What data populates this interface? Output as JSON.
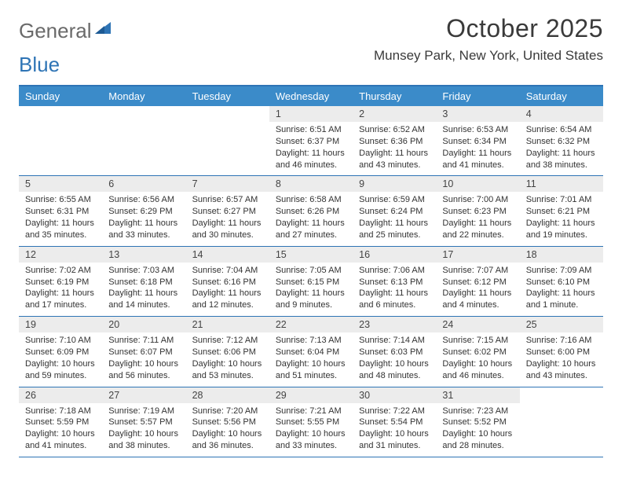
{
  "logo": {
    "text1": "General",
    "text2": "Blue"
  },
  "title": "October 2025",
  "location": "Munsey Park, New York, United States",
  "colors": {
    "header_bg": "#3b8bc9",
    "header_text": "#ffffff",
    "border": "#2e74b5",
    "daynum_bg": "#ececec",
    "body_text": "#333333",
    "logo_gray": "#6a6a6a",
    "logo_blue": "#2e74b5"
  },
  "typography": {
    "title_fontsize": 32,
    "location_fontsize": 17,
    "dayheader_fontsize": 13,
    "daynum_fontsize": 12.5,
    "info_fontsize": 11
  },
  "day_names": [
    "Sunday",
    "Monday",
    "Tuesday",
    "Wednesday",
    "Thursday",
    "Friday",
    "Saturday"
  ],
  "weeks": [
    [
      {
        "n": "",
        "sunrise": "",
        "sunset": "",
        "daylight1": "",
        "daylight2": ""
      },
      {
        "n": "",
        "sunrise": "",
        "sunset": "",
        "daylight1": "",
        "daylight2": ""
      },
      {
        "n": "",
        "sunrise": "",
        "sunset": "",
        "daylight1": "",
        "daylight2": ""
      },
      {
        "n": "1",
        "sunrise": "Sunrise: 6:51 AM",
        "sunset": "Sunset: 6:37 PM",
        "daylight1": "Daylight: 11 hours",
        "daylight2": "and 46 minutes."
      },
      {
        "n": "2",
        "sunrise": "Sunrise: 6:52 AM",
        "sunset": "Sunset: 6:36 PM",
        "daylight1": "Daylight: 11 hours",
        "daylight2": "and 43 minutes."
      },
      {
        "n": "3",
        "sunrise": "Sunrise: 6:53 AM",
        "sunset": "Sunset: 6:34 PM",
        "daylight1": "Daylight: 11 hours",
        "daylight2": "and 41 minutes."
      },
      {
        "n": "4",
        "sunrise": "Sunrise: 6:54 AM",
        "sunset": "Sunset: 6:32 PM",
        "daylight1": "Daylight: 11 hours",
        "daylight2": "and 38 minutes."
      }
    ],
    [
      {
        "n": "5",
        "sunrise": "Sunrise: 6:55 AM",
        "sunset": "Sunset: 6:31 PM",
        "daylight1": "Daylight: 11 hours",
        "daylight2": "and 35 minutes."
      },
      {
        "n": "6",
        "sunrise": "Sunrise: 6:56 AM",
        "sunset": "Sunset: 6:29 PM",
        "daylight1": "Daylight: 11 hours",
        "daylight2": "and 33 minutes."
      },
      {
        "n": "7",
        "sunrise": "Sunrise: 6:57 AM",
        "sunset": "Sunset: 6:27 PM",
        "daylight1": "Daylight: 11 hours",
        "daylight2": "and 30 minutes."
      },
      {
        "n": "8",
        "sunrise": "Sunrise: 6:58 AM",
        "sunset": "Sunset: 6:26 PM",
        "daylight1": "Daylight: 11 hours",
        "daylight2": "and 27 minutes."
      },
      {
        "n": "9",
        "sunrise": "Sunrise: 6:59 AM",
        "sunset": "Sunset: 6:24 PM",
        "daylight1": "Daylight: 11 hours",
        "daylight2": "and 25 minutes."
      },
      {
        "n": "10",
        "sunrise": "Sunrise: 7:00 AM",
        "sunset": "Sunset: 6:23 PM",
        "daylight1": "Daylight: 11 hours",
        "daylight2": "and 22 minutes."
      },
      {
        "n": "11",
        "sunrise": "Sunrise: 7:01 AM",
        "sunset": "Sunset: 6:21 PM",
        "daylight1": "Daylight: 11 hours",
        "daylight2": "and 19 minutes."
      }
    ],
    [
      {
        "n": "12",
        "sunrise": "Sunrise: 7:02 AM",
        "sunset": "Sunset: 6:19 PM",
        "daylight1": "Daylight: 11 hours",
        "daylight2": "and 17 minutes."
      },
      {
        "n": "13",
        "sunrise": "Sunrise: 7:03 AM",
        "sunset": "Sunset: 6:18 PM",
        "daylight1": "Daylight: 11 hours",
        "daylight2": "and 14 minutes."
      },
      {
        "n": "14",
        "sunrise": "Sunrise: 7:04 AM",
        "sunset": "Sunset: 6:16 PM",
        "daylight1": "Daylight: 11 hours",
        "daylight2": "and 12 minutes."
      },
      {
        "n": "15",
        "sunrise": "Sunrise: 7:05 AM",
        "sunset": "Sunset: 6:15 PM",
        "daylight1": "Daylight: 11 hours",
        "daylight2": "and 9 minutes."
      },
      {
        "n": "16",
        "sunrise": "Sunrise: 7:06 AM",
        "sunset": "Sunset: 6:13 PM",
        "daylight1": "Daylight: 11 hours",
        "daylight2": "and 6 minutes."
      },
      {
        "n": "17",
        "sunrise": "Sunrise: 7:07 AM",
        "sunset": "Sunset: 6:12 PM",
        "daylight1": "Daylight: 11 hours",
        "daylight2": "and 4 minutes."
      },
      {
        "n": "18",
        "sunrise": "Sunrise: 7:09 AM",
        "sunset": "Sunset: 6:10 PM",
        "daylight1": "Daylight: 11 hours",
        "daylight2": "and 1 minute."
      }
    ],
    [
      {
        "n": "19",
        "sunrise": "Sunrise: 7:10 AM",
        "sunset": "Sunset: 6:09 PM",
        "daylight1": "Daylight: 10 hours",
        "daylight2": "and 59 minutes."
      },
      {
        "n": "20",
        "sunrise": "Sunrise: 7:11 AM",
        "sunset": "Sunset: 6:07 PM",
        "daylight1": "Daylight: 10 hours",
        "daylight2": "and 56 minutes."
      },
      {
        "n": "21",
        "sunrise": "Sunrise: 7:12 AM",
        "sunset": "Sunset: 6:06 PM",
        "daylight1": "Daylight: 10 hours",
        "daylight2": "and 53 minutes."
      },
      {
        "n": "22",
        "sunrise": "Sunrise: 7:13 AM",
        "sunset": "Sunset: 6:04 PM",
        "daylight1": "Daylight: 10 hours",
        "daylight2": "and 51 minutes."
      },
      {
        "n": "23",
        "sunrise": "Sunrise: 7:14 AM",
        "sunset": "Sunset: 6:03 PM",
        "daylight1": "Daylight: 10 hours",
        "daylight2": "and 48 minutes."
      },
      {
        "n": "24",
        "sunrise": "Sunrise: 7:15 AM",
        "sunset": "Sunset: 6:02 PM",
        "daylight1": "Daylight: 10 hours",
        "daylight2": "and 46 minutes."
      },
      {
        "n": "25",
        "sunrise": "Sunrise: 7:16 AM",
        "sunset": "Sunset: 6:00 PM",
        "daylight1": "Daylight: 10 hours",
        "daylight2": "and 43 minutes."
      }
    ],
    [
      {
        "n": "26",
        "sunrise": "Sunrise: 7:18 AM",
        "sunset": "Sunset: 5:59 PM",
        "daylight1": "Daylight: 10 hours",
        "daylight2": "and 41 minutes."
      },
      {
        "n": "27",
        "sunrise": "Sunrise: 7:19 AM",
        "sunset": "Sunset: 5:57 PM",
        "daylight1": "Daylight: 10 hours",
        "daylight2": "and 38 minutes."
      },
      {
        "n": "28",
        "sunrise": "Sunrise: 7:20 AM",
        "sunset": "Sunset: 5:56 PM",
        "daylight1": "Daylight: 10 hours",
        "daylight2": "and 36 minutes."
      },
      {
        "n": "29",
        "sunrise": "Sunrise: 7:21 AM",
        "sunset": "Sunset: 5:55 PM",
        "daylight1": "Daylight: 10 hours",
        "daylight2": "and 33 minutes."
      },
      {
        "n": "30",
        "sunrise": "Sunrise: 7:22 AM",
        "sunset": "Sunset: 5:54 PM",
        "daylight1": "Daylight: 10 hours",
        "daylight2": "and 31 minutes."
      },
      {
        "n": "31",
        "sunrise": "Sunrise: 7:23 AM",
        "sunset": "Sunset: 5:52 PM",
        "daylight1": "Daylight: 10 hours",
        "daylight2": "and 28 minutes."
      },
      {
        "n": "",
        "sunrise": "",
        "sunset": "",
        "daylight1": "",
        "daylight2": ""
      }
    ]
  ]
}
